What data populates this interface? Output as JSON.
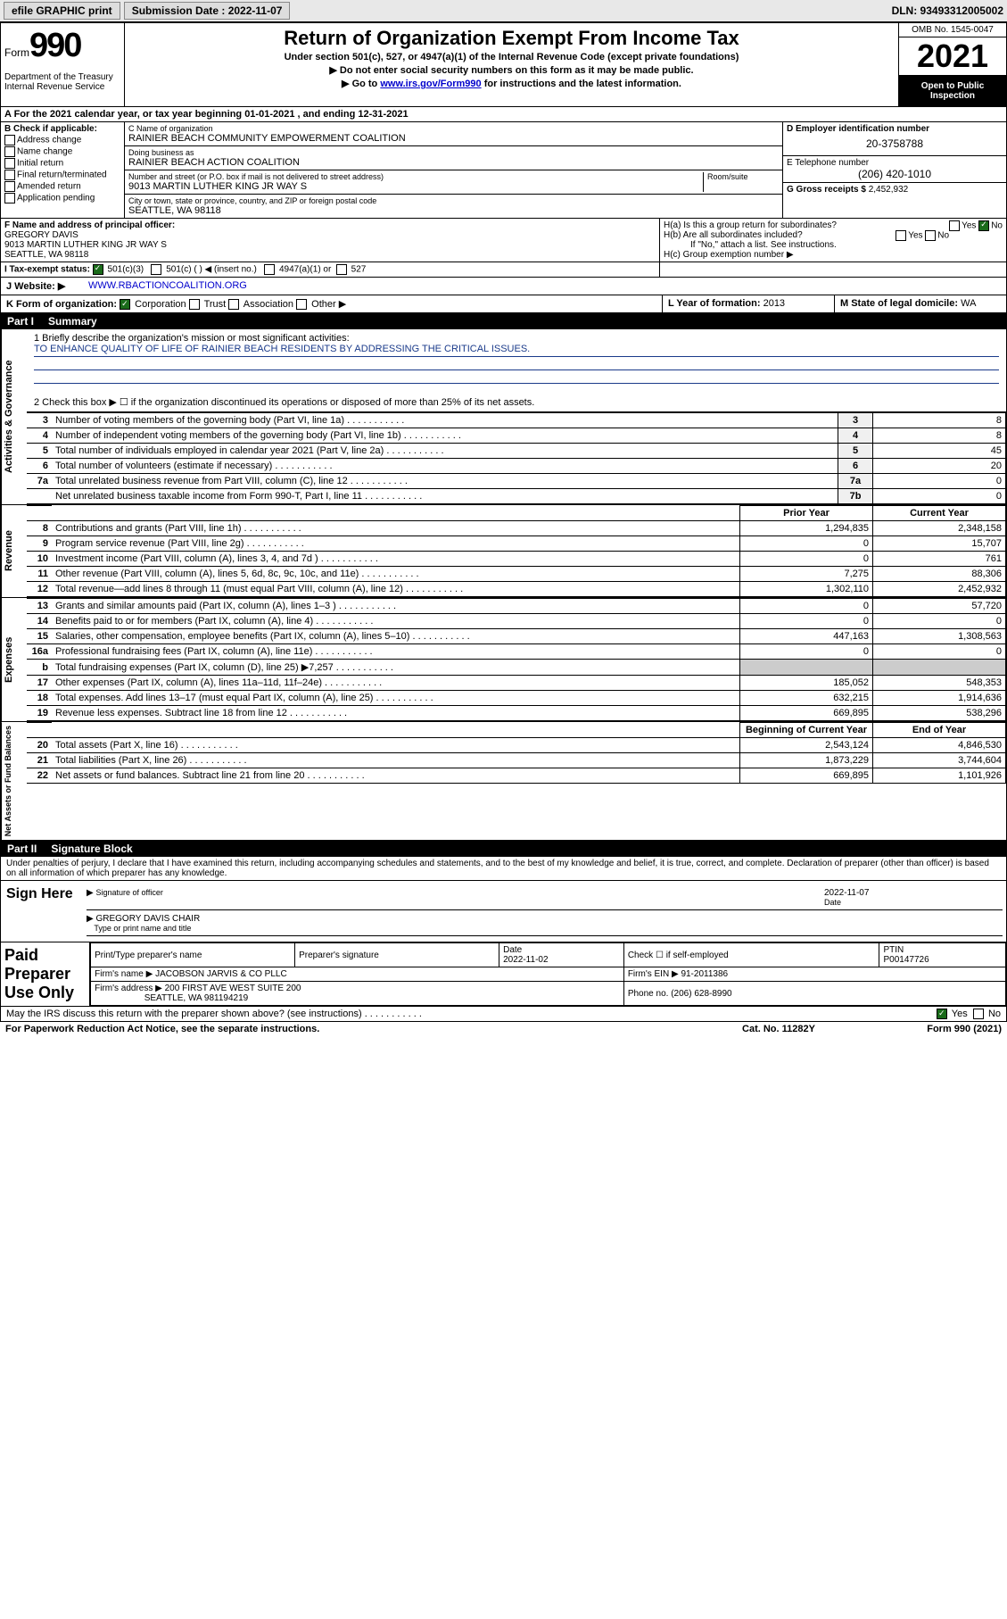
{
  "topbar": {
    "efile": "efile GRAPHIC print",
    "sub_label": "Submission Date : 2022-11-07",
    "dln": "DLN: 93493312005002"
  },
  "header": {
    "form_word": "Form",
    "form_num": "990",
    "dept": "Department of the Treasury\nInternal Revenue Service",
    "title": "Return of Organization Exempt From Income Tax",
    "sub1": "Under section 501(c), 527, or 4947(a)(1) of the Internal Revenue Code (except private foundations)",
    "sub2": "▶ Do not enter social security numbers on this form as it may be made public.",
    "sub3_pre": "▶ Go to ",
    "sub3_link": "www.irs.gov/Form990",
    "sub3_post": " for instructions and the latest information.",
    "omb": "OMB No. 1545-0047",
    "year": "2021",
    "open": "Open to Public Inspection"
  },
  "row_a": "A For the 2021 calendar year, or tax year beginning 01-01-2021   , and ending 12-31-2021",
  "section_b": {
    "hdr": "B Check if applicable:",
    "opts": [
      "Address change",
      "Name change",
      "Initial return",
      "Final return/terminated",
      "Amended return",
      "Application pending"
    ]
  },
  "section_c": {
    "name_label": "C Name of organization",
    "name": "RAINIER BEACH COMMUNITY EMPOWERMENT COALITION",
    "dba_label": "Doing business as",
    "dba": "RAINIER BEACH ACTION COALITION",
    "addr_label": "Number and street (or P.O. box if mail is not delivered to street address)",
    "room_label": "Room/suite",
    "addr": "9013 MARTIN LUTHER KING JR WAY S",
    "city_label": "City or town, state or province, country, and ZIP or foreign postal code",
    "city": "SEATTLE, WA  98118"
  },
  "section_de": {
    "d_label": "D Employer identification number",
    "d_val": "20-3758788",
    "e_label": "E Telephone number",
    "e_val": "(206) 420-1010",
    "g_label": "G Gross receipts $",
    "g_val": "2,452,932"
  },
  "section_f": {
    "label": "F Name and address of principal officer:",
    "name": "GREGORY DAVIS",
    "addr1": "9013 MARTIN LUTHER KING JR WAY S",
    "addr2": "SEATTLE, WA  98118"
  },
  "section_h": {
    "ha": "H(a)  Is this a group return for subordinates?",
    "hb": "H(b)  Are all subordinates included?",
    "hb_note": "If \"No,\" attach a list. See instructions.",
    "hc": "H(c)  Group exemption number ▶",
    "yes": "Yes",
    "no": "No"
  },
  "section_i": {
    "label": "I   Tax-exempt status:",
    "o1": "501(c)(3)",
    "o2": "501(c) (  ) ◀ (insert no.)",
    "o3": "4947(a)(1) or",
    "o4": "527"
  },
  "section_j": {
    "label": "J   Website: ▶",
    "val": "WWW.RBACTIONCOALITION.ORG"
  },
  "section_k": {
    "label": "K Form of organization:",
    "o1": "Corporation",
    "o2": "Trust",
    "o3": "Association",
    "o4": "Other ▶"
  },
  "section_l": {
    "label": "L Year of formation:",
    "val": "2013"
  },
  "section_m": {
    "label": "M State of legal domicile:",
    "val": "WA"
  },
  "part1": {
    "num": "Part I",
    "title": "Summary"
  },
  "mission": {
    "q1": "1  Briefly describe the organization's mission or most significant activities:",
    "text": "TO ENHANCE QUALITY OF LIFE OF RAINIER BEACH RESIDENTS BY ADDRESSING THE CRITICAL ISSUES.",
    "q2": "2  Check this box ▶ ☐  if the organization discontinued its operations or disposed of more than 25% of its net assets."
  },
  "gov_rows": [
    {
      "n": "3",
      "d": "Number of voting members of the governing body (Part VI, line 1a)",
      "box": "3",
      "v": "8"
    },
    {
      "n": "4",
      "d": "Number of independent voting members of the governing body (Part VI, line 1b)",
      "box": "4",
      "v": "8"
    },
    {
      "n": "5",
      "d": "Total number of individuals employed in calendar year 2021 (Part V, line 2a)",
      "box": "5",
      "v": "45"
    },
    {
      "n": "6",
      "d": "Total number of volunteers (estimate if necessary)",
      "box": "6",
      "v": "20"
    },
    {
      "n": "7a",
      "d": "Total unrelated business revenue from Part VIII, column (C), line 12",
      "box": "7a",
      "v": "0"
    },
    {
      "n": "",
      "d": "Net unrelated business taxable income from Form 990-T, Part I, line 11",
      "box": "7b",
      "v": "0"
    }
  ],
  "py_cy_hdr": {
    "py": "Prior Year",
    "cy": "Current Year"
  },
  "rev_rows": [
    {
      "n": "8",
      "d": "Contributions and grants (Part VIII, line 1h)",
      "py": "1,294,835",
      "cy": "2,348,158"
    },
    {
      "n": "9",
      "d": "Program service revenue (Part VIII, line 2g)",
      "py": "0",
      "cy": "15,707"
    },
    {
      "n": "10",
      "d": "Investment income (Part VIII, column (A), lines 3, 4, and 7d )",
      "py": "0",
      "cy": "761"
    },
    {
      "n": "11",
      "d": "Other revenue (Part VIII, column (A), lines 5, 6d, 8c, 9c, 10c, and 11e)",
      "py": "7,275",
      "cy": "88,306"
    },
    {
      "n": "12",
      "d": "Total revenue—add lines 8 through 11 (must equal Part VIII, column (A), line 12)",
      "py": "1,302,110",
      "cy": "2,452,932"
    }
  ],
  "exp_rows": [
    {
      "n": "13",
      "d": "Grants and similar amounts paid (Part IX, column (A), lines 1–3 )",
      "py": "0",
      "cy": "57,720"
    },
    {
      "n": "14",
      "d": "Benefits paid to or for members (Part IX, column (A), line 4)",
      "py": "0",
      "cy": "0"
    },
    {
      "n": "15",
      "d": "Salaries, other compensation, employee benefits (Part IX, column (A), lines 5–10)",
      "py": "447,163",
      "cy": "1,308,563"
    },
    {
      "n": "16a",
      "d": "Professional fundraising fees (Part IX, column (A), line 11e)",
      "py": "0",
      "cy": "0"
    },
    {
      "n": "b",
      "d": "Total fundraising expenses (Part IX, column (D), line 25) ▶7,257",
      "py": "",
      "cy": "",
      "shade": true
    },
    {
      "n": "17",
      "d": "Other expenses (Part IX, column (A), lines 11a–11d, 11f–24e)",
      "py": "185,052",
      "cy": "548,353"
    },
    {
      "n": "18",
      "d": "Total expenses. Add lines 13–17 (must equal Part IX, column (A), line 25)",
      "py": "632,215",
      "cy": "1,914,636"
    },
    {
      "n": "19",
      "d": "Revenue less expenses. Subtract line 18 from line 12",
      "py": "669,895",
      "cy": "538,296"
    }
  ],
  "na_hdr": {
    "b": "Beginning of Current Year",
    "e": "End of Year"
  },
  "na_rows": [
    {
      "n": "20",
      "d": "Total assets (Part X, line 16)",
      "py": "2,543,124",
      "cy": "4,846,530"
    },
    {
      "n": "21",
      "d": "Total liabilities (Part X, line 26)",
      "py": "1,873,229",
      "cy": "3,744,604"
    },
    {
      "n": "22",
      "d": "Net assets or fund balances. Subtract line 21 from line 20",
      "py": "669,895",
      "cy": "1,101,926"
    }
  ],
  "vtabs": {
    "gov": "Activities & Governance",
    "rev": "Revenue",
    "exp": "Expenses",
    "na": "Net Assets or Fund Balances"
  },
  "part2": {
    "num": "Part II",
    "title": "Signature Block"
  },
  "sig": {
    "intro": "Under penalties of perjury, I declare that I have examined this return, including accompanying schedules and statements, and to the best of my knowledge and belief, it is true, correct, and complete. Declaration of preparer (other than officer) is based on all information of which preparer has any knowledge.",
    "sign_here": "Sign Here",
    "sig_officer": "Signature of officer",
    "date": "Date",
    "date_val": "2022-11-07",
    "name_title": "GREGORY DAVIS  CHAIR",
    "name_title_lbl": "Type or print name and title"
  },
  "paid": {
    "lbl": "Paid Preparer Use Only",
    "h1": "Print/Type preparer's name",
    "h2": "Preparer's signature",
    "h3": "Date",
    "h3v": "2022-11-02",
    "h4": "Check ☐ if self-employed",
    "h5": "PTIN",
    "h5v": "P00147726",
    "firm_name_l": "Firm's name    ▶",
    "firm_name": "JACOBSON JARVIS & CO PLLC",
    "firm_ein_l": "Firm's EIN ▶",
    "firm_ein": "91-2011386",
    "firm_addr_l": "Firm's address ▶",
    "firm_addr": "200 FIRST AVE WEST SUITE 200",
    "firm_city": "SEATTLE, WA  981194219",
    "phone_l": "Phone no.",
    "phone": "(206) 628-8990"
  },
  "footer": {
    "q": "May the IRS discuss this return with the preparer shown above? (see instructions)",
    "yes": "Yes",
    "no": "No",
    "pra": "For Paperwork Reduction Act Notice, see the separate instructions.",
    "cat": "Cat. No. 11282Y",
    "form": "Form 990 (2021)"
  }
}
